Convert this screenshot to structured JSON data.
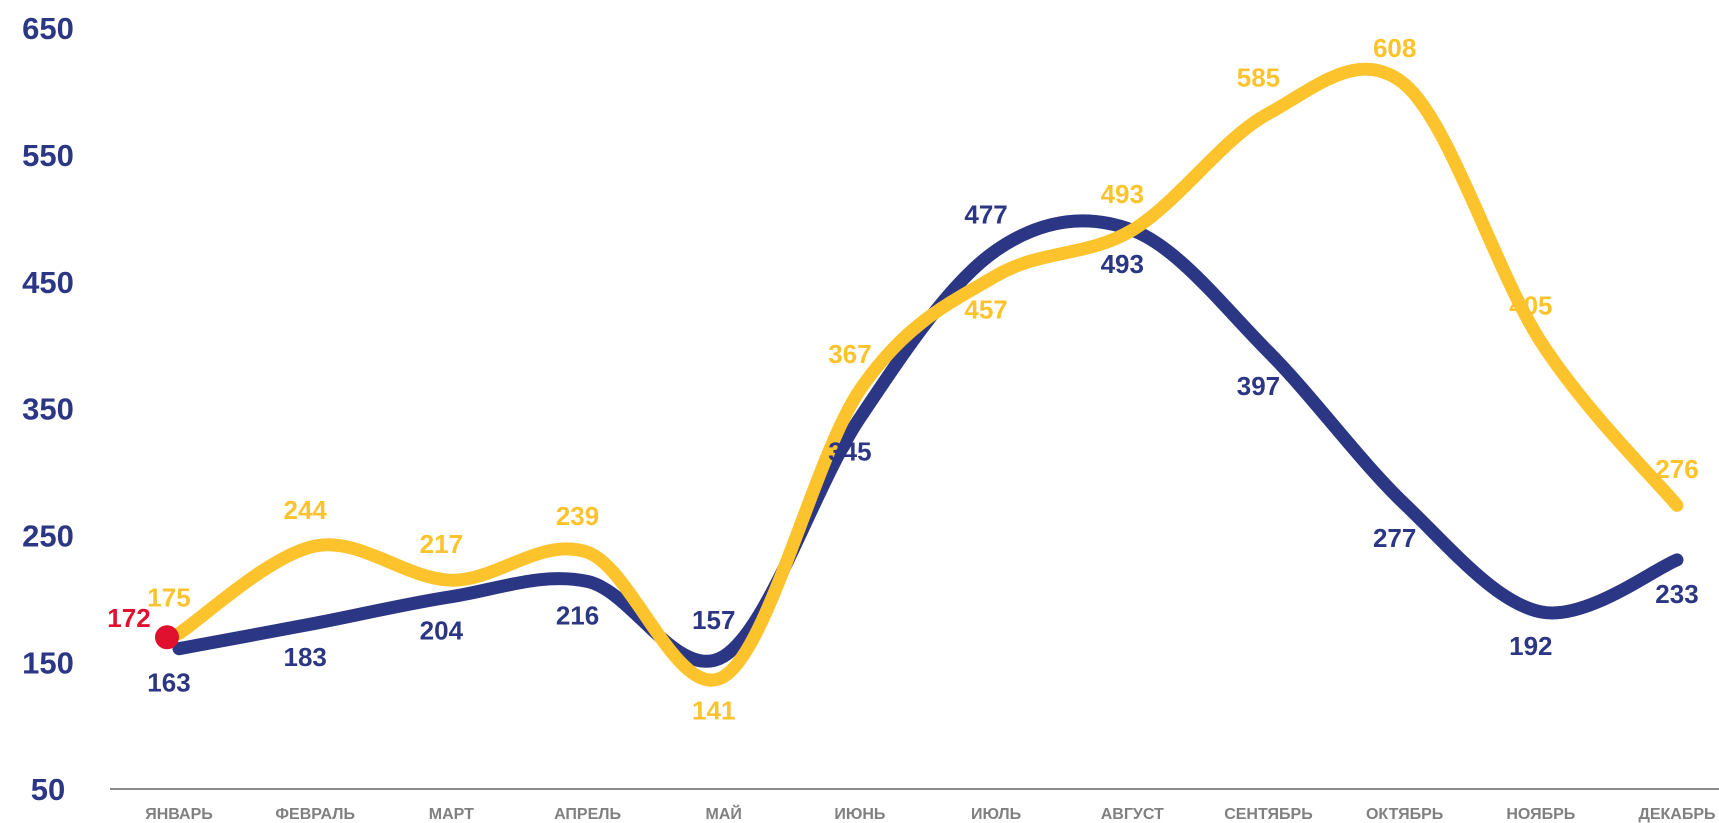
{
  "chart_data": {
    "type": "line",
    "categories": [
      "ЯНВАРЬ",
      "ФЕВРАЛЬ",
      "МАРТ",
      "АПРЕЛЬ",
      "МАЙ",
      "ИЮНЬ",
      "ИЮЛЬ",
      "АВГУСТ",
      "СЕНТЯБРЬ",
      "ОКТЯБРЬ",
      "НОЯБРЬ",
      "ДЕКАБРЬ"
    ],
    "series": [
      {
        "color": "#2b3684",
        "values": [
          163,
          183,
          204,
          216,
          157,
          345,
          477,
          493,
          397,
          277,
          192,
          233
        ]
      },
      {
        "color": "#fcc32c",
        "values": [
          175,
          244,
          217,
          239,
          141,
          367,
          457,
          493,
          585,
          608,
          405,
          276
        ]
      }
    ],
    "annotations": [
      {
        "x": "ЯНВАРЬ",
        "y": 172,
        "color": "#e0102f"
      }
    ],
    "ylim": [
      50,
      650
    ],
    "yticks": [
      50,
      150,
      250,
      350,
      450,
      550,
      650
    ],
    "smooth": true
  }
}
